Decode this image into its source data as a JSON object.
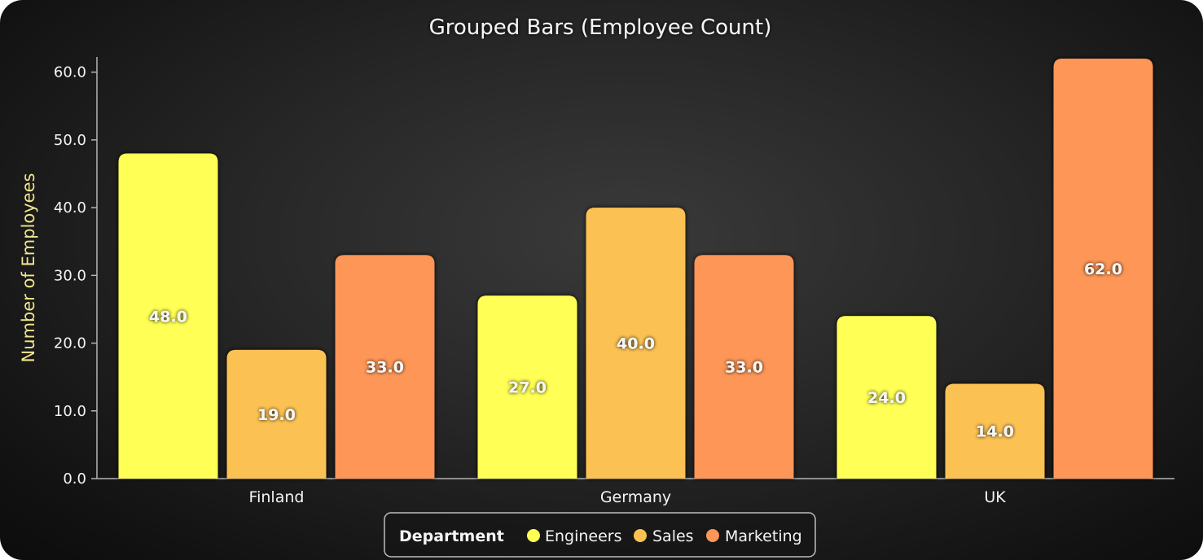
{
  "chart_data": {
    "type": "bar",
    "title": "Grouped Bars (Employee Count)",
    "xlabel": "",
    "ylabel": "Number of Employees",
    "categories": [
      "Finland",
      "Germany",
      "UK"
    ],
    "series": [
      {
        "name": "Engineers",
        "color": "#ffff55",
        "values": [
          48.0,
          27.0,
          24.0
        ]
      },
      {
        "name": "Sales",
        "color": "#fbc252",
        "values": [
          19.0,
          40.0,
          14.0
        ]
      },
      {
        "name": "Marketing",
        "color": "#fd9656",
        "values": [
          33.0,
          33.0,
          62.0
        ]
      }
    ],
    "ylim": [
      0,
      62
    ],
    "yticks": [
      "0.0",
      "10.0",
      "20.0",
      "30.0",
      "40.0",
      "50.0",
      "60.0"
    ],
    "data_labels": [
      [
        "48.0",
        "27.0",
        "24.0"
      ],
      [
        "19.0",
        "40.0",
        "14.0"
      ],
      [
        "33.0",
        "33.0",
        "62.0"
      ]
    ],
    "grid": false,
    "legend": {
      "title": "Department",
      "position": "bottom-center"
    }
  }
}
